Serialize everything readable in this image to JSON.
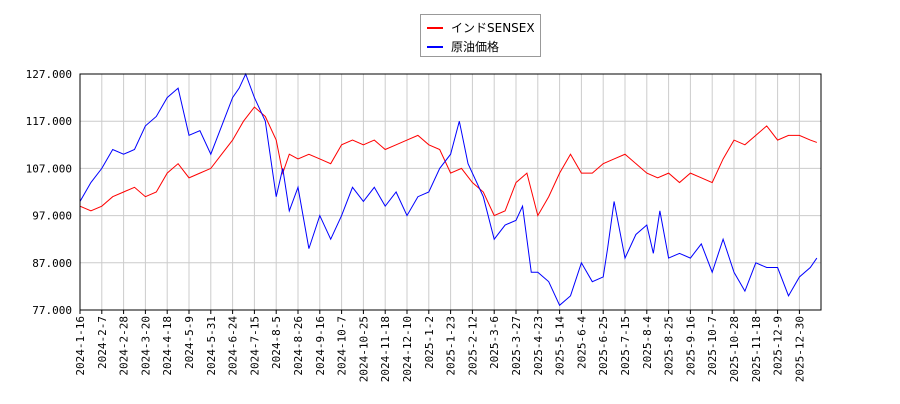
{
  "chart_data": {
    "type": "line",
    "title": "",
    "xlabel": "",
    "ylabel": "",
    "ylim": [
      77,
      127
    ],
    "yticks": [
      "77.000",
      "87.000",
      "97.000",
      "107.000",
      "117.000",
      "127.000"
    ],
    "ytick_values": [
      77,
      87,
      97,
      107,
      117,
      127
    ],
    "xticks": [
      "2024-1-16",
      "2024-2-7",
      "2024-2-28",
      "2024-3-20",
      "2024-4-18",
      "2024-5-9",
      "2024-5-31",
      "2024-6-24",
      "2024-7-15",
      "2024-8-5",
      "2024-8-26",
      "2024-9-16",
      "2024-10-7",
      "2024-10-25",
      "2024-11-18",
      "2024-12-10",
      "2025-1-2",
      "2025-1-23",
      "2025-2-12",
      "2025-3-6",
      "2025-3-27",
      "2025-4-23",
      "2025-5-14",
      "2025-6-4",
      "2025-6-25",
      "2025-7-15",
      "2025-8-4",
      "2025-8-25",
      "2025-9-16",
      "2025-10-7",
      "2025-10-28",
      "2025-11-18",
      "2025-12-9",
      "2025-12-30"
    ],
    "grid": true,
    "legend_position": "top-center",
    "series": [
      {
        "name": "インドSENSEX",
        "color": "#ff0000",
        "x": [
          0,
          0.5,
          1,
          1.5,
          2,
          2.5,
          3,
          3.5,
          4,
          4.5,
          5,
          5.5,
          6,
          6.5,
          7,
          7.5,
          8,
          8.5,
          9,
          9.3,
          9.6,
          10,
          10.5,
          11,
          11.5,
          12,
          12.5,
          13,
          13.5,
          14,
          14.5,
          15,
          15.5,
          16,
          16.5,
          17,
          17.5,
          18,
          18.5,
          19,
          19.5,
          20,
          20.5,
          21,
          21.5,
          22,
          22.5,
          23,
          23.5,
          24,
          24.5,
          25,
          25.5,
          26,
          26.5,
          27,
          27.5,
          28,
          28.5,
          29,
          29.5,
          30,
          30.5,
          31,
          31.5,
          32,
          32.5,
          33,
          33.5,
          33.8
        ],
        "values": [
          99,
          98,
          99,
          101,
          102,
          103,
          101,
          102,
          106,
          108,
          105,
          106,
          107,
          110,
          113,
          117,
          120,
          118,
          113,
          106,
          110,
          109,
          110,
          109,
          108,
          112,
          113,
          112,
          113,
          111,
          112,
          113,
          114,
          112,
          111,
          106,
          107,
          104,
          102,
          97,
          98,
          104,
          106,
          97,
          101,
          106,
          110,
          106,
          106,
          108,
          109,
          110,
          108,
          106,
          105,
          106,
          104,
          106,
          105,
          104,
          109,
          113,
          112,
          114,
          116,
          113,
          114,
          114,
          113,
          112.5
        ]
      },
      {
        "name": "原油価格",
        "color": "#0000ff",
        "x": [
          0,
          0.5,
          1,
          1.5,
          2,
          2.5,
          3,
          3.5,
          4,
          4.5,
          5,
          5.5,
          6,
          6.5,
          7,
          7.3,
          7.6,
          8,
          8.5,
          9,
          9.3,
          9.6,
          10,
          10.5,
          11,
          11.5,
          12,
          12.5,
          13,
          13.5,
          14,
          14.5,
          15,
          15.5,
          16,
          16.5,
          17,
          17.4,
          17.8,
          18.5,
          19,
          19.5,
          20,
          20.3,
          20.7,
          21,
          21.5,
          22,
          22.5,
          23,
          23.5,
          24,
          24.2,
          24.5,
          25,
          25.5,
          26,
          26.3,
          26.6,
          27,
          27.5,
          28,
          28.5,
          29,
          29.5,
          30,
          30.5,
          31,
          31.5,
          32,
          32.5,
          33,
          33.5,
          33.8
        ],
        "values": [
          100,
          104,
          107,
          111,
          110,
          111,
          116,
          118,
          122,
          124,
          114,
          115,
          110,
          116,
          122,
          124,
          127,
          122,
          117,
          101,
          107,
          98,
          103,
          90,
          97,
          92,
          97,
          103,
          100,
          103,
          99,
          102,
          97,
          101,
          102,
          107,
          110,
          117,
          108,
          101,
          92,
          95,
          96,
          99,
          85,
          85,
          83,
          78,
          80,
          87,
          83,
          84,
          90,
          100,
          88,
          93,
          95,
          89,
          98,
          88,
          89,
          88,
          91,
          85,
          92,
          85,
          81,
          87,
          86,
          86,
          80,
          84,
          86,
          88
        ]
      }
    ]
  }
}
